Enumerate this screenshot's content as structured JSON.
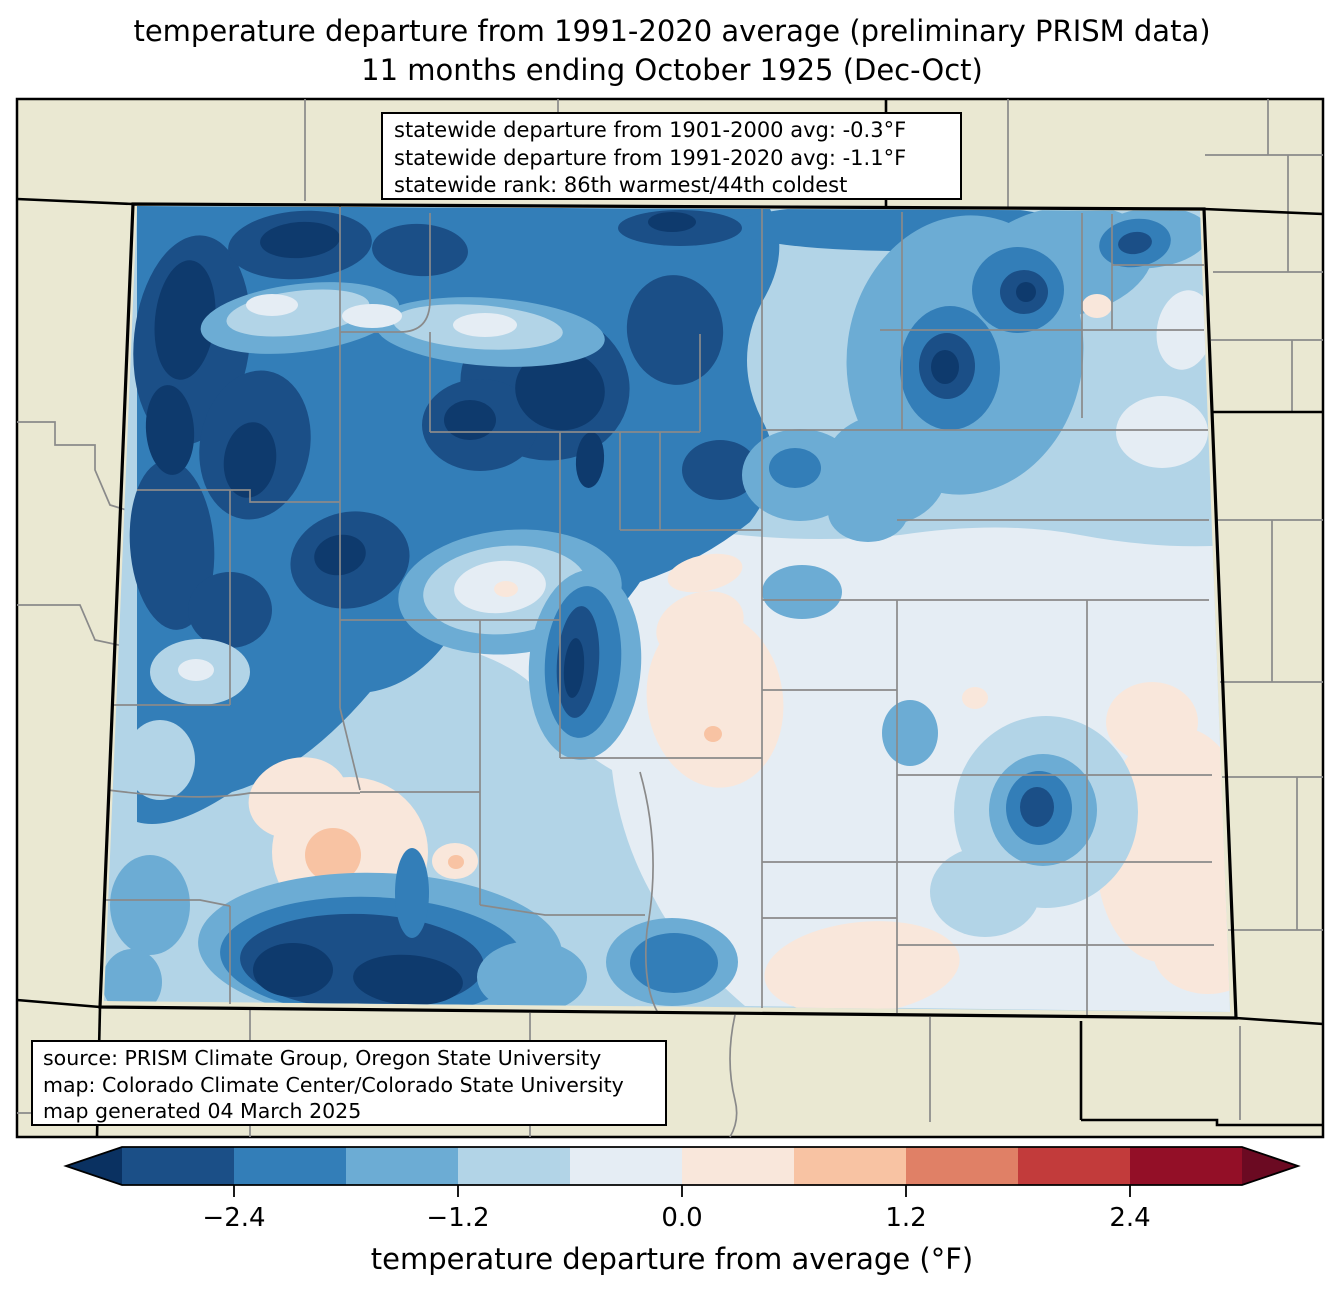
{
  "title": {
    "line1": "temperature departure from 1991-2020 average (preliminary PRISM data)",
    "line2": "11 months ending October 1925 (Dec-Oct)"
  },
  "stats_box": {
    "line1": "statewide departure from 1901-2000 avg: -0.3°F",
    "line2": "statewide departure from 1991-2020 avg: -1.1°F",
    "line3": "statewide rank: 86th warmest/44th coldest"
  },
  "source_box": {
    "line1": "source: PRISM Climate Group, Oregon State University",
    "line2": "map: Colorado Climate Center/Colorado State University",
    "line3": "map generated 04 March 2025"
  },
  "colorbar": {
    "label": "temperature departure from average (°F)",
    "ticks": [
      "−2.4",
      "−1.2",
      "0.0",
      "1.2",
      "2.4"
    ],
    "tick_values": [
      -2.4,
      -1.2,
      0.0,
      1.2,
      2.4
    ],
    "segment_bounds": [
      -3.0,
      -2.4,
      -1.8,
      -1.2,
      -0.6,
      0.0,
      0.6,
      1.2,
      1.8,
      2.4,
      3.0
    ],
    "segment_colors": [
      "#1b4f87",
      "#337eb8",
      "#6cacd4",
      "#b2d4e7",
      "#e5edf4",
      "#f9e7db",
      "#f8c3a3",
      "#e08066",
      "#c23b3b",
      "#930f27"
    ],
    "under_color": "#0a3161",
    "over_color": "#6b0a22",
    "units": "°F"
  },
  "map": {
    "region": "Colorado",
    "background_color": "#eae8d2",
    "county_line_color": "#8a8a8a",
    "state_border_color": "#000000"
  },
  "chart_data": {
    "type": "heatmap",
    "title": "temperature departure from 1991-2020 average (preliminary PRISM data)",
    "subtitle": "11 months ending October 1925 (Dec-Oct)",
    "region": "Colorado",
    "field": "temperature departure from average (°F)",
    "statewide_departure_from_1901_2000_avg_F": -0.3,
    "statewide_departure_from_1991_2020_avg_F": -1.1,
    "statewide_rank": "86th warmest/44th coldest",
    "source": "PRISM Climate Group, Oregon State University",
    "map_credit": "Colorado Climate Center/Colorado State University",
    "generated": "04 March 2025",
    "colorbar": {
      "orientation": "horizontal",
      "min": -3.0,
      "max": 3.0,
      "step": 0.6,
      "ticks": [
        -2.4,
        -1.2,
        0.0,
        1.2,
        2.4
      ],
      "units": "°F",
      "extend": "both"
    }
  }
}
